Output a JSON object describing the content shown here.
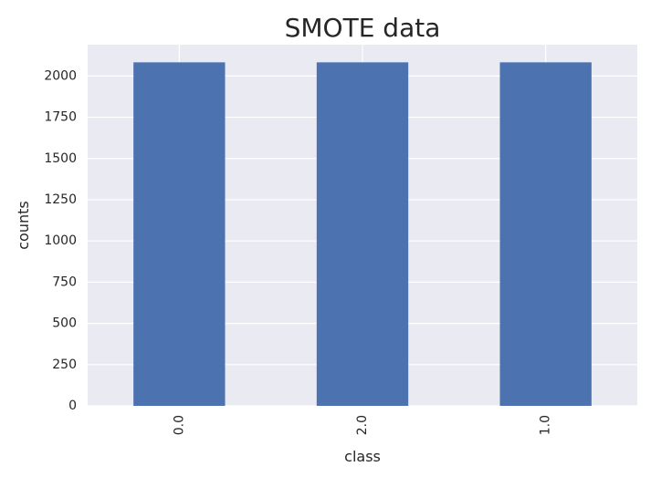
{
  "chart_data": {
    "type": "bar",
    "title": "SMOTE data",
    "xlabel": "class",
    "ylabel": "counts",
    "categories": [
      "0.0",
      "2.0",
      "1.0"
    ],
    "values": [
      2083,
      2083,
      2083
    ],
    "ylim": [
      0,
      2190
    ],
    "yticks": [
      0,
      250,
      500,
      750,
      1000,
      1250,
      1500,
      1750,
      2000
    ],
    "ytick_labels": [
      "0",
      "250",
      "500",
      "750",
      "1000",
      "1250",
      "1500",
      "1750",
      "2000"
    ],
    "grid": true,
    "legend": "none",
    "x_tick_rotation": "vertical"
  },
  "colors": {
    "bar": "#4c72b0",
    "plot_background": "#eaeaf2",
    "grid": "#ffffff",
    "text": "#262626"
  }
}
